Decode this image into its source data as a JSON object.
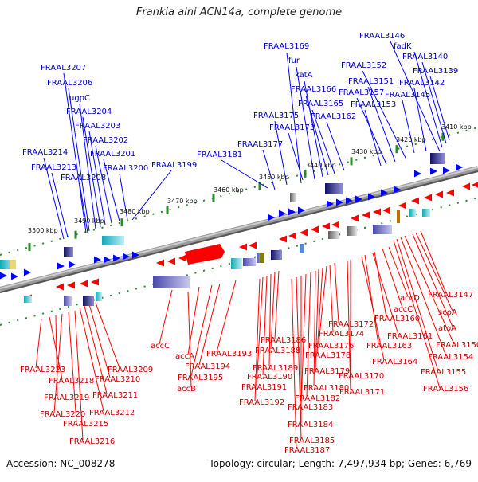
{
  "title": "Frankia alni ACN14a, complete genome",
  "footer": {
    "accession": "Accession: NC_008278",
    "summary": "Topology: circular; Length: 7,497,934 bp; Genes: 6,769"
  },
  "colors": {
    "forward_gene": "#0000ff",
    "reverse_gene": "#ff0000",
    "forward_label": "#0000c8",
    "reverse_label": "#c80000",
    "backbone": "#7a7a7a",
    "tick": "#2a8a2a"
  },
  "ticks": [
    "3410 kbp",
    "3420 kbp",
    "3430 kbp",
    "3440 kbp",
    "3450 kbp",
    "3460 kbp",
    "3470 kbp",
    "3480 kbp",
    "3490 kbp",
    "3500 kbp"
  ],
  "forward_labels": [
    "FRAAL3146",
    "fadK",
    "FRAAL3140",
    "FRAAL3139",
    "FRAAL3142",
    "FRAAL3145",
    "FRAAL3152",
    "FRAAL3151",
    "FRAAL3157",
    "FRAAL3153",
    "FRAAL3169",
    "fur",
    "katA",
    "FRAAL3166",
    "FRAAL3165",
    "FRAAL3162",
    "FRAAL3175",
    "FRAAL3173",
    "FRAAL3177",
    "FRAAL3181",
    "FRAAL3199",
    "FRAAL3207",
    "FRAAL3206",
    "ugpC",
    "FRAAL3204",
    "FRAAL3203",
    "FRAAL3202",
    "FRAAL3201",
    "FRAAL3214",
    "FRAAL3213",
    "FRAAL3208",
    "FRAAL3200"
  ],
  "reverse_labels": [
    "FRAAL3147",
    "scoA",
    "atoA",
    "accD",
    "accC",
    "FRAAL3160",
    "FRAAL3161",
    "FRAAL3150",
    "FRAAL3154",
    "FRAAL3155",
    "FRAAL3156",
    "FRAAL3163",
    "FRAAL3164",
    "FRAAL3172",
    "FRAAL3174",
    "FRAAL3170",
    "FRAAL3171",
    "FRAAL3186",
    "FRAAL3176",
    "FRAAL3188",
    "FRAAL3178",
    "FRAAL3189",
    "FRAAL3179",
    "FRAAL3190",
    "FRAAL3180",
    "FRAAL3191",
    "FRAAL3182",
    "FRAAL3183",
    "FRAAL3192",
    "FRAAL3184",
    "FRAAL3185",
    "FRAAL3187",
    "FRAAL3193",
    "FRAAL3194",
    "FRAAL3195",
    "accC",
    "accA",
    "accB",
    "FRAAL3209",
    "FRAAL3210",
    "FRAAL3211",
    "FRAAL3212",
    "FRAAL3223",
    "FRAAL3218",
    "FRAAL3219",
    "FRAAL3220",
    "FRAAL3215",
    "FRAAL3216"
  ]
}
